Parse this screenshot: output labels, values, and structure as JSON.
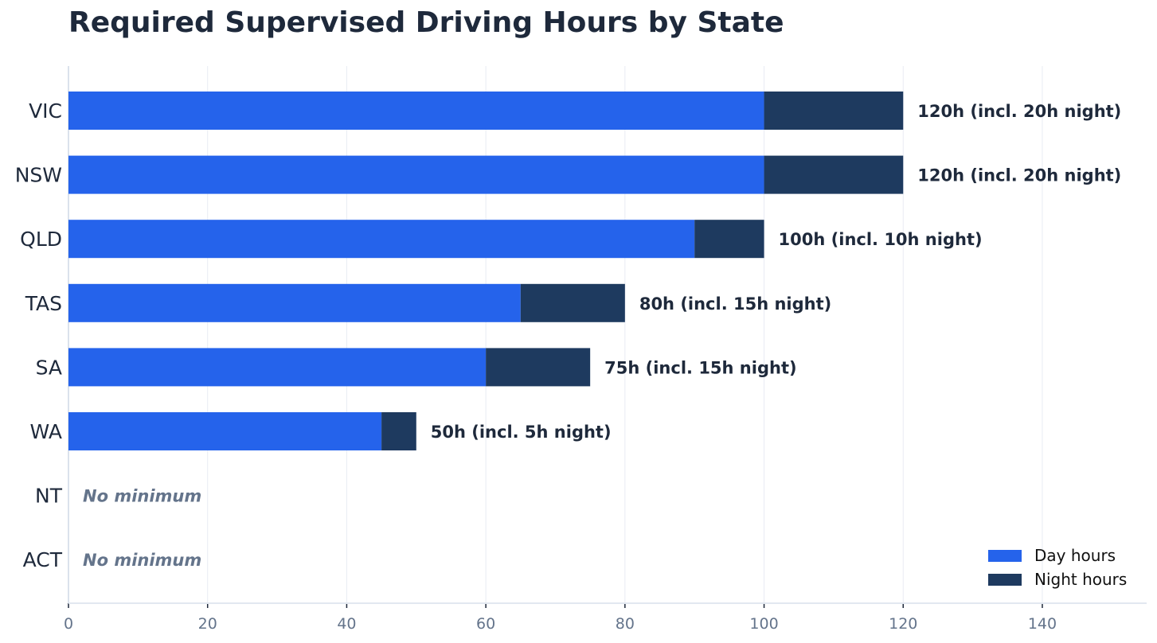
{
  "chart_data": {
    "type": "bar",
    "orientation": "horizontal",
    "stacked": true,
    "title": "Required Supervised Driving Hours by State",
    "xlabel": "",
    "ylabel": "",
    "xlim": [
      0,
      155
    ],
    "xticks": [
      0,
      20,
      40,
      60,
      80,
      100,
      120,
      140
    ],
    "grid": "vertical",
    "legend_position": "bottom-right",
    "categories": [
      "VIC",
      "NSW",
      "QLD",
      "TAS",
      "SA",
      "WA",
      "NT",
      "ACT"
    ],
    "series": [
      {
        "name": "Day hours",
        "color": "#2563eb",
        "values": [
          100,
          100,
          90,
          65,
          60,
          45,
          0,
          0
        ]
      },
      {
        "name": "Night hours",
        "color": "#1e3a5f",
        "values": [
          20,
          20,
          10,
          15,
          15,
          5,
          0,
          0
        ]
      }
    ],
    "data_labels": [
      "120h (incl. 20h night)",
      "120h (incl. 20h night)",
      "100h (incl. 10h night)",
      "80h (incl. 15h night)",
      "75h (incl. 15h night)",
      "50h (incl. 5h night)",
      "No minimum",
      "No minimum"
    ]
  }
}
